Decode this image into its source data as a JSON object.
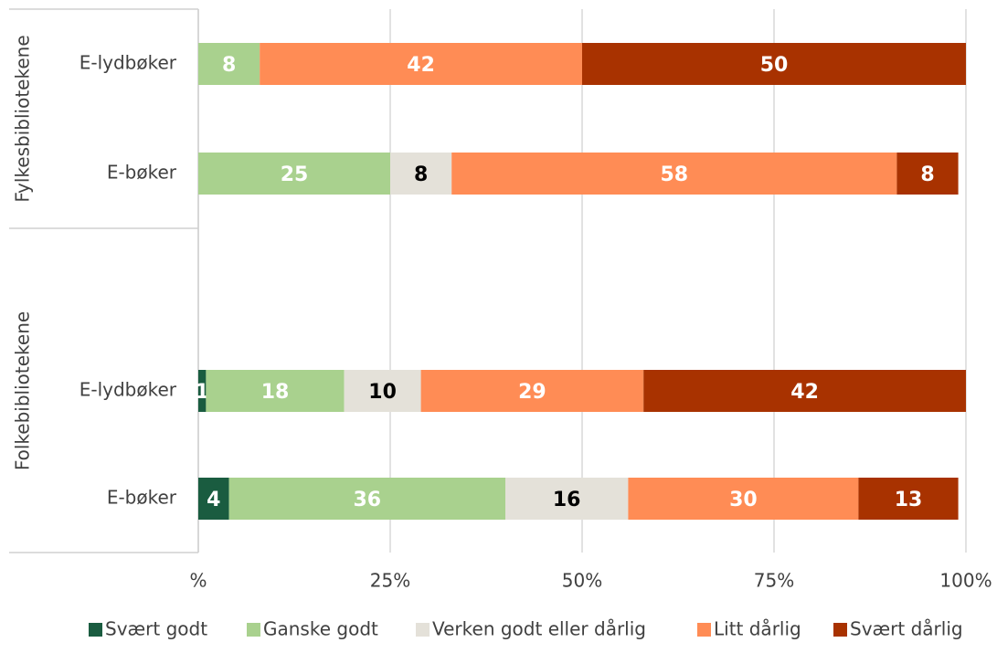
{
  "chart_data": {
    "type": "stacked-bar-horizontal",
    "groups": [
      "Fylkesbibliotekene",
      "Folkebibliotekene"
    ],
    "categories": [
      "E-lydbøker",
      "E-bøker",
      "E-lydbøker",
      "E-bøker"
    ],
    "series": [
      {
        "name": "Svært godt",
        "color": "#1a5c40",
        "values": [
          null,
          null,
          1,
          4
        ]
      },
      {
        "name": "Ganske godt",
        "color": "#a9d18e",
        "values": [
          8,
          25,
          18,
          36
        ]
      },
      {
        "name": "Verken godt eller dårlig",
        "color": "#e4e1d9",
        "values": [
          null,
          8,
          10,
          16
        ]
      },
      {
        "name": "Litt dårlig",
        "color": "#ff8c55",
        "values": [
          42,
          58,
          29,
          30
        ]
      },
      {
        "name": "Svært dårlig",
        "color": "#a83200",
        "values": [
          50,
          8,
          42,
          13
        ]
      }
    ],
    "xlim": [
      0,
      100
    ],
    "xticks": [
      {
        "value": 0,
        "label": "%"
      },
      {
        "value": 25,
        "label": "25%"
      },
      {
        "value": 50,
        "label": "50%"
      },
      {
        "value": 75,
        "label": "75%"
      },
      {
        "value": 100,
        "label": "100%"
      }
    ],
    "grid": true,
    "legend": "bottom"
  }
}
